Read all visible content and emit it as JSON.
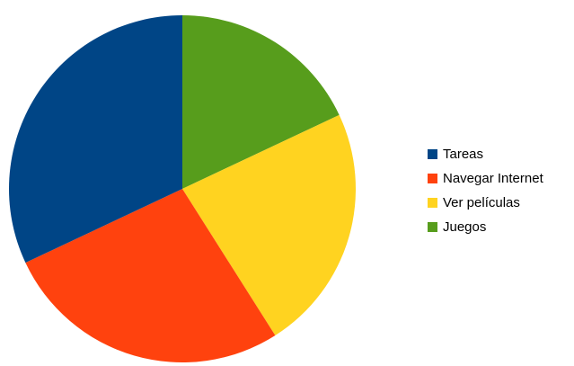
{
  "chart_data": {
    "type": "pie",
    "title": "",
    "series": [
      {
        "values": [
          32,
          27,
          23,
          18
        ]
      }
    ],
    "categories": [
      "Tareas",
      "Navegar Internet",
      "Ver películas",
      "Juegos"
    ],
    "colors": [
      "#004586",
      "#ff420e",
      "#ffd320",
      "#579d1c"
    ],
    "start_angle": "top, clockwise from Juegos",
    "legend_position": "right"
  }
}
